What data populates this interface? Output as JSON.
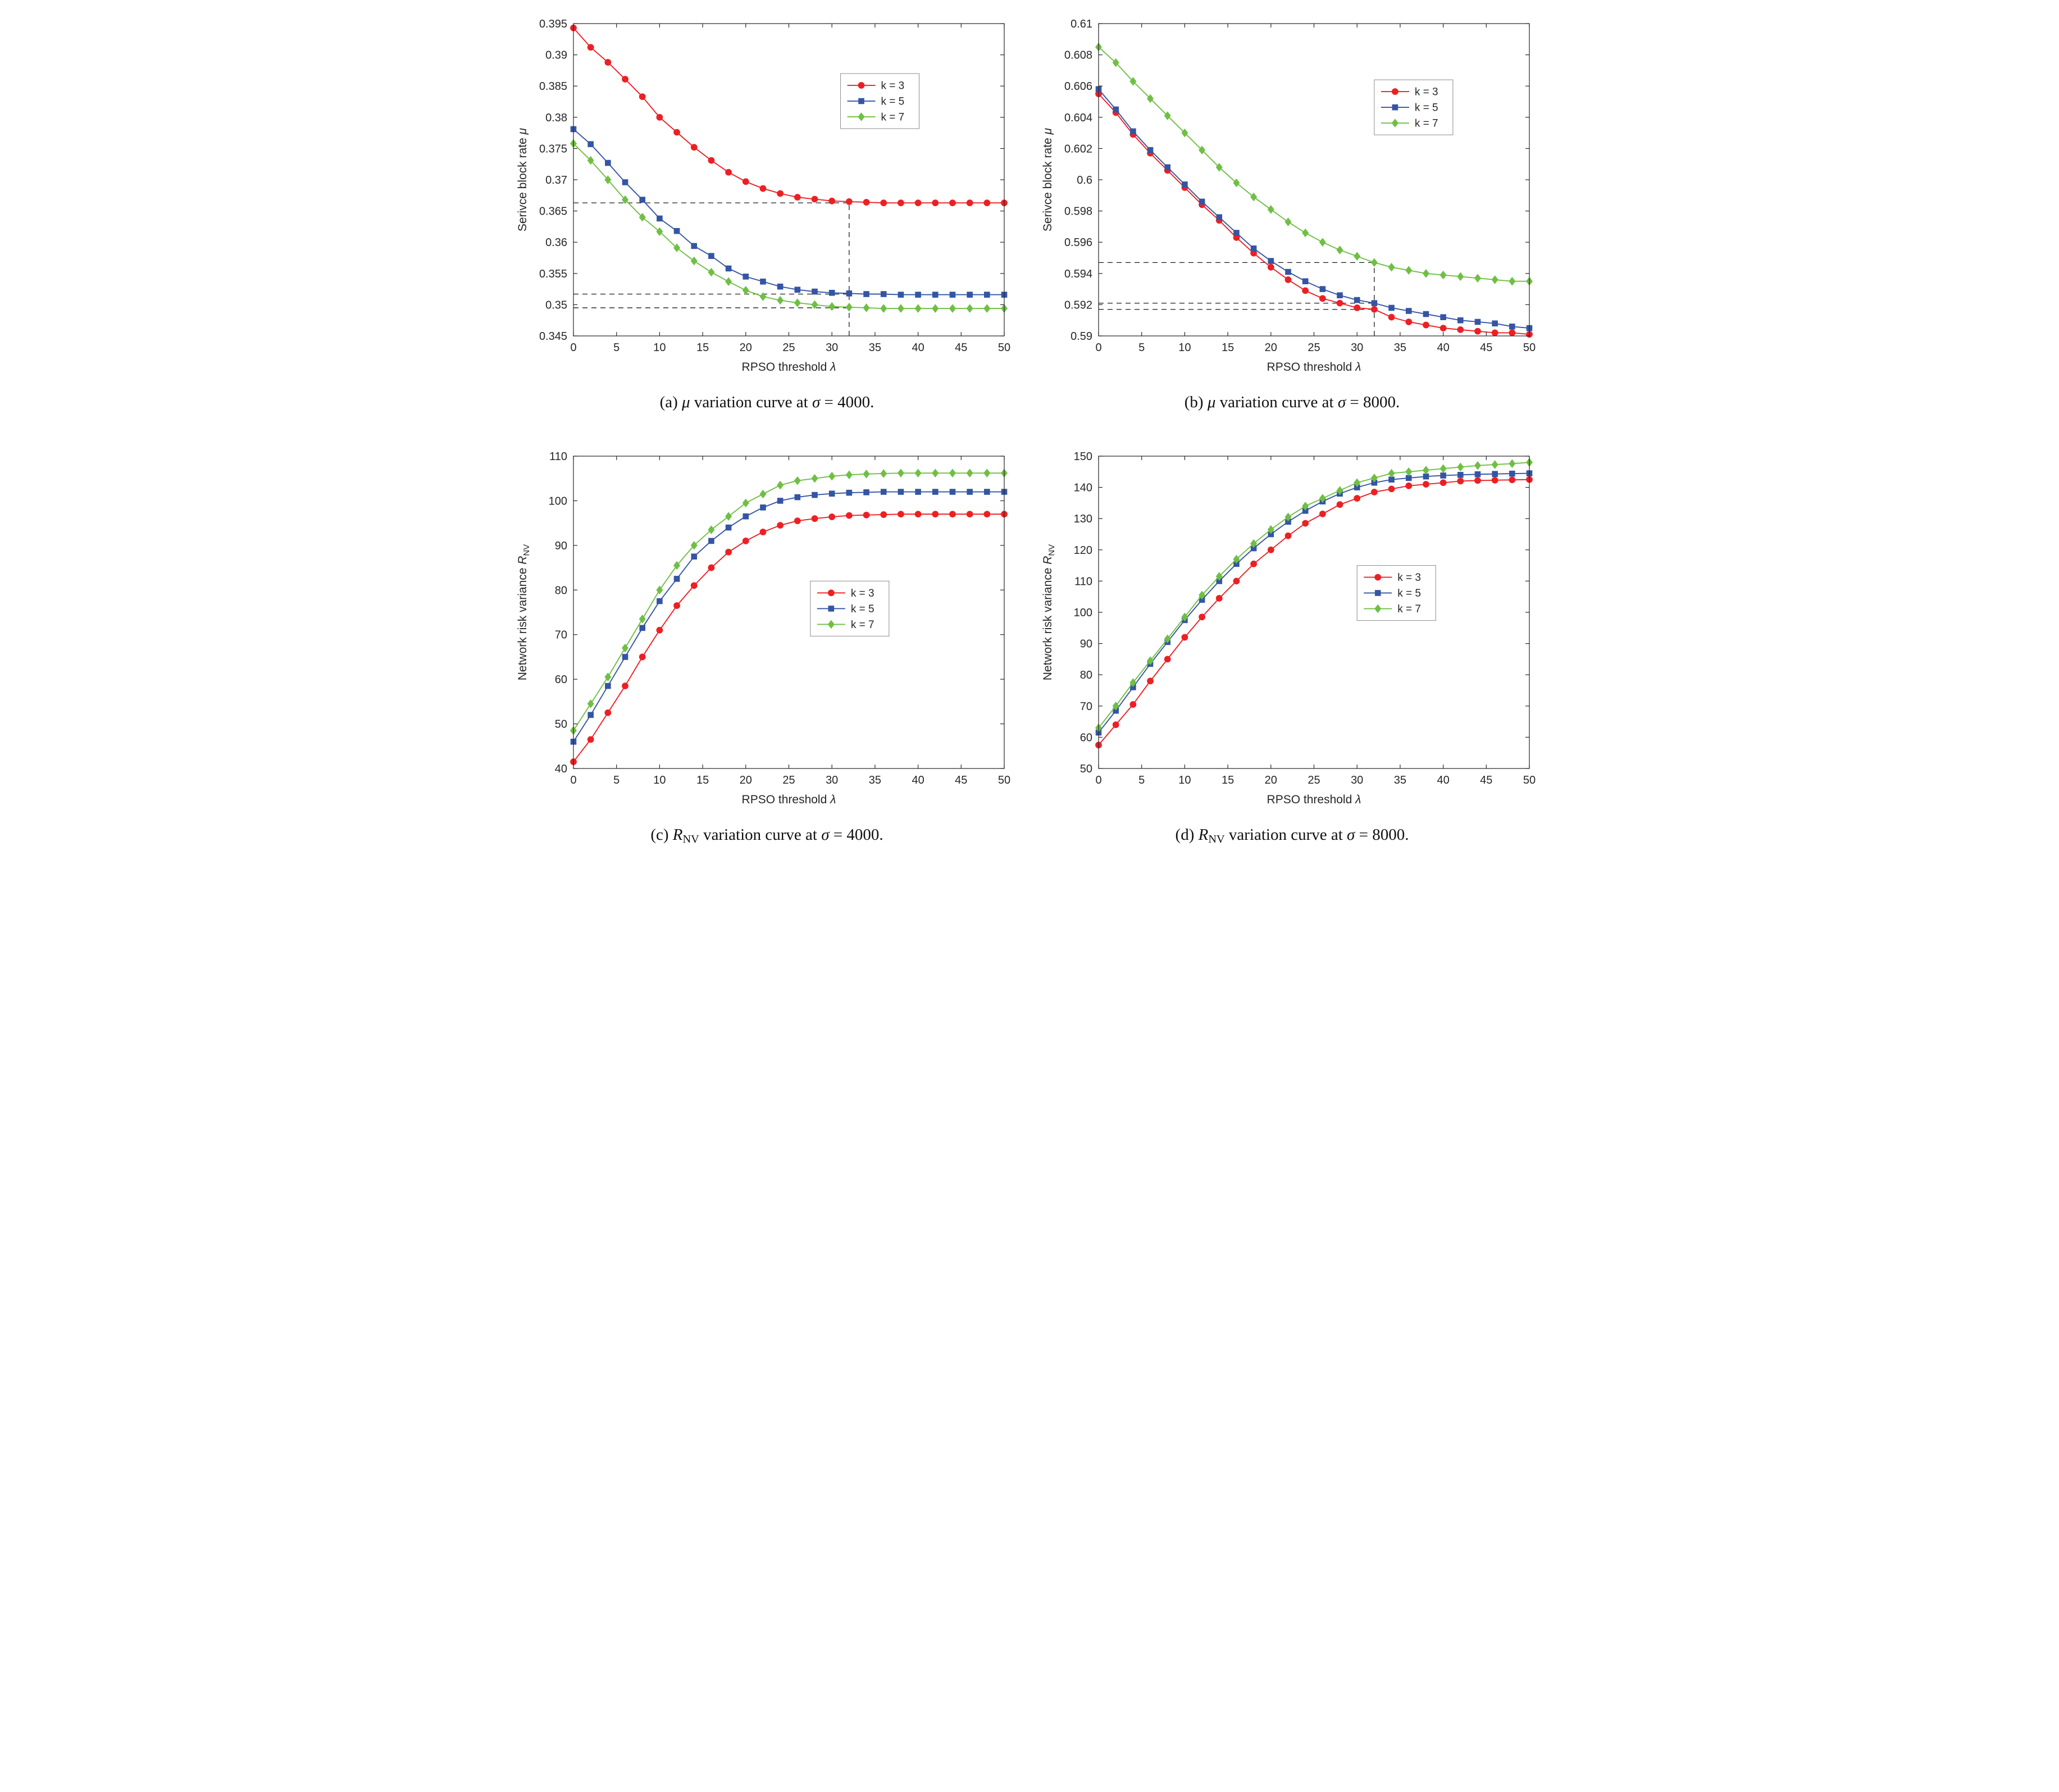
{
  "page": {
    "background": "#ffffff"
  },
  "colors": {
    "red": "#ec2024",
    "blue": "#3455a4",
    "green": "#6fbf44",
    "axis": "#262626",
    "dash": "#1a1a1a",
    "legend_border": "#8c8c8c"
  },
  "legend_entries": [
    "k = 3",
    "k = 5",
    "k = 7"
  ],
  "chart_data": [
    {
      "id": "a",
      "type": "line",
      "caption_segs": [
        {
          "t": "(a) "
        },
        {
          "t": "μ",
          "s": "i"
        },
        {
          "t": " variation curve at "
        },
        {
          "t": "σ",
          "s": "i"
        },
        {
          "t": " = 4000."
        }
      ],
      "xlabel_segs": [
        {
          "t": "RPSO threshold "
        },
        {
          "t": "λ",
          "s": "i"
        }
      ],
      "ylabel_segs": [
        {
          "t": "Serivce block rate "
        },
        {
          "t": "μ",
          "s": "i"
        }
      ],
      "xlim": [
        0,
        50
      ],
      "ylim": [
        0.345,
        0.395
      ],
      "xticks": {
        "values": [
          0,
          5,
          10,
          15,
          20,
          25,
          30,
          35,
          40,
          45,
          50
        ],
        "labels": [
          "0",
          "5",
          "10",
          "15",
          "20",
          "25",
          "30",
          "35",
          "40",
          "45",
          "50"
        ]
      },
      "yticks": {
        "values": [
          0.345,
          0.35,
          0.355,
          0.36,
          0.365,
          0.37,
          0.375,
          0.38,
          0.385,
          0.39,
          0.395
        ],
        "labels": [
          "0.345",
          "0.35",
          "0.355",
          "0.36",
          "0.365",
          "0.37",
          "0.375",
          "0.38",
          "0.385",
          "0.39",
          "0.395"
        ]
      },
      "x": [
        0,
        2,
        4,
        6,
        8,
        10,
        12,
        14,
        16,
        18,
        20,
        22,
        24,
        26,
        28,
        30,
        32,
        34,
        36,
        38,
        40,
        42,
        44,
        46,
        48,
        50
      ],
      "series": [
        {
          "name": "k = 3",
          "color": "#ec2024",
          "marker": "circle",
          "values": [
            0.3943,
            0.3912,
            0.3888,
            0.3861,
            0.3833,
            0.38,
            0.3776,
            0.3752,
            0.3731,
            0.3712,
            0.3697,
            0.3686,
            0.3678,
            0.3672,
            0.3669,
            0.3666,
            0.3665,
            0.3664,
            0.3663,
            0.3663,
            0.3663,
            0.3663,
            0.3663,
            0.3663,
            0.3663,
            0.3663
          ]
        },
        {
          "name": "k = 5",
          "color": "#3455a4",
          "marker": "square",
          "values": [
            0.3781,
            0.3757,
            0.3727,
            0.3696,
            0.3668,
            0.3638,
            0.3618,
            0.3594,
            0.3578,
            0.3558,
            0.3545,
            0.3537,
            0.3529,
            0.3524,
            0.3521,
            0.3519,
            0.3518,
            0.3517,
            0.3517,
            0.3516,
            0.3516,
            0.3516,
            0.3516,
            0.3516,
            0.3516,
            0.3516
          ]
        },
        {
          "name": "k = 7",
          "color": "#6fbf44",
          "marker": "diamond",
          "values": [
            0.3758,
            0.3731,
            0.37,
            0.3668,
            0.364,
            0.3617,
            0.3591,
            0.357,
            0.3552,
            0.3537,
            0.3523,
            0.3513,
            0.3507,
            0.3503,
            0.35,
            0.3497,
            0.3496,
            0.3495,
            0.3494,
            0.3494,
            0.3494,
            0.3494,
            0.3494,
            0.3494,
            0.3494,
            0.3494
          ]
        }
      ],
      "dashed_h": [
        {
          "y": 0.3663,
          "x0": 0,
          "x1": 32
        },
        {
          "y": 0.3517,
          "x0": 0,
          "x1": 32
        },
        {
          "y": 0.3495,
          "x0": 0,
          "x1": 32
        }
      ],
      "dashed_v": [
        {
          "x": 32,
          "y0": 0.345,
          "y1": 0.3663
        }
      ],
      "legend_pos": {
        "x": 0.62,
        "y": 0.16
      }
    },
    {
      "id": "b",
      "type": "line",
      "caption_segs": [
        {
          "t": "(b) "
        },
        {
          "t": "μ",
          "s": "i"
        },
        {
          "t": " variation curve at "
        },
        {
          "t": "σ",
          "s": "i"
        },
        {
          "t": " = 8000."
        }
      ],
      "xlabel_segs": [
        {
          "t": "RPSO threshold "
        },
        {
          "t": "λ",
          "s": "i"
        }
      ],
      "ylabel_segs": [
        {
          "t": "Serivce block rate "
        },
        {
          "t": "μ",
          "s": "i"
        }
      ],
      "xlim": [
        0,
        50
      ],
      "ylim": [
        0.59,
        0.61
      ],
      "xticks": {
        "values": [
          0,
          5,
          10,
          15,
          20,
          25,
          30,
          35,
          40,
          45,
          50
        ],
        "labels": [
          "0",
          "5",
          "10",
          "15",
          "20",
          "25",
          "30",
          "35",
          "40",
          "45",
          "50"
        ]
      },
      "yticks": {
        "values": [
          0.59,
          0.592,
          0.594,
          0.596,
          0.598,
          0.6,
          0.602,
          0.604,
          0.606,
          0.608,
          0.61
        ],
        "labels": [
          "0.59",
          "0.592",
          "0.594",
          "0.596",
          "0.598",
          "0.6",
          "0.602",
          "0.604",
          "0.606",
          "0.608",
          "0.61"
        ]
      },
      "x": [
        0,
        2,
        4,
        6,
        8,
        10,
        12,
        14,
        16,
        18,
        20,
        22,
        24,
        26,
        28,
        30,
        32,
        34,
        36,
        38,
        40,
        42,
        44,
        46,
        48,
        50
      ],
      "series": [
        {
          "name": "k = 3",
          "color": "#ec2024",
          "marker": "circle",
          "values": [
            0.6055,
            0.6043,
            0.6029,
            0.6017,
            0.6006,
            0.5995,
            0.5984,
            0.5974,
            0.5963,
            0.5953,
            0.5944,
            0.5936,
            0.5929,
            0.5924,
            0.5921,
            0.5918,
            0.5917,
            0.5912,
            0.5909,
            0.5907,
            0.5905,
            0.5904,
            0.5903,
            0.5902,
            0.5902,
            0.5901
          ]
        },
        {
          "name": "k = 5",
          "color": "#3455a4",
          "marker": "square",
          "values": [
            0.6058,
            0.6045,
            0.6031,
            0.6019,
            0.6008,
            0.5997,
            0.5986,
            0.5976,
            0.5966,
            0.5956,
            0.5948,
            0.5941,
            0.5935,
            0.593,
            0.5926,
            0.5923,
            0.5921,
            0.5918,
            0.5916,
            0.5914,
            0.5912,
            0.591,
            0.5909,
            0.5908,
            0.5906,
            0.5905
          ]
        },
        {
          "name": "k = 7",
          "color": "#6fbf44",
          "marker": "diamond",
          "values": [
            0.6085,
            0.6075,
            0.6063,
            0.6052,
            0.6041,
            0.603,
            0.6019,
            0.6008,
            0.5998,
            0.5989,
            0.5981,
            0.5973,
            0.5966,
            0.596,
            0.5955,
            0.5951,
            0.5947,
            0.5944,
            0.5942,
            0.594,
            0.5939,
            0.5938,
            0.5937,
            0.5936,
            0.5935,
            0.5935
          ]
        }
      ],
      "dashed_h": [
        {
          "y": 0.5947,
          "x0": 0,
          "x1": 32
        },
        {
          "y": 0.5921,
          "x0": 0,
          "x1": 32
        },
        {
          "y": 0.5917,
          "x0": 0,
          "x1": 32
        }
      ],
      "dashed_v": [
        {
          "x": 32,
          "y0": 0.59,
          "y1": 0.5947
        }
      ],
      "legend_pos": {
        "x": 0.64,
        "y": 0.18
      }
    },
    {
      "id": "c",
      "type": "line",
      "caption_segs": [
        {
          "t": "(c) "
        },
        {
          "t": "R",
          "s": "i"
        },
        {
          "t": "NV",
          "s": "sub"
        },
        {
          "t": " variation curve at "
        },
        {
          "t": "σ",
          "s": "i"
        },
        {
          "t": " = 4000."
        }
      ],
      "xlabel_segs": [
        {
          "t": "RPSO threshold "
        },
        {
          "t": "λ",
          "s": "i"
        }
      ],
      "ylabel_segs": [
        {
          "t": "Network risk variance  "
        },
        {
          "t": "R",
          "s": "i"
        },
        {
          "t": "NV",
          "s": "sub"
        }
      ],
      "xlim": [
        0,
        50
      ],
      "ylim": [
        40,
        110
      ],
      "xticks": {
        "values": [
          0,
          5,
          10,
          15,
          20,
          25,
          30,
          35,
          40,
          45,
          50
        ],
        "labels": [
          "0",
          "5",
          "10",
          "15",
          "20",
          "25",
          "30",
          "35",
          "40",
          "45",
          "50"
        ]
      },
      "yticks": {
        "values": [
          40,
          50,
          60,
          70,
          80,
          90,
          100,
          110
        ],
        "labels": [
          "40",
          "50",
          "60",
          "70",
          "80",
          "90",
          "100",
          "110"
        ]
      },
      "x": [
        0,
        2,
        4,
        6,
        8,
        10,
        12,
        14,
        16,
        18,
        20,
        22,
        24,
        26,
        28,
        30,
        32,
        34,
        36,
        38,
        40,
        42,
        44,
        46,
        48,
        50
      ],
      "series": [
        {
          "name": "k = 3",
          "color": "#ec2024",
          "marker": "circle",
          "values": [
            41.5,
            46.5,
            52.5,
            58.5,
            65,
            71,
            76.5,
            81,
            85,
            88.5,
            91,
            93,
            94.5,
            95.5,
            96,
            96.4,
            96.7,
            96.8,
            96.9,
            97,
            97,
            97,
            97,
            97,
            97,
            97
          ]
        },
        {
          "name": "k = 5",
          "color": "#3455a4",
          "marker": "square",
          "values": [
            46,
            52,
            58.5,
            65,
            71.5,
            77.5,
            82.5,
            87.5,
            91,
            94,
            96.5,
            98.5,
            100,
            100.8,
            101.3,
            101.6,
            101.8,
            101.9,
            102,
            102,
            102,
            102,
            102,
            102,
            102,
            102
          ]
        },
        {
          "name": "k = 7",
          "color": "#6fbf44",
          "marker": "diamond",
          "values": [
            48.5,
            54.5,
            60.5,
            67,
            73.5,
            80,
            85.5,
            90,
            93.5,
            96.5,
            99.5,
            101.5,
            103.5,
            104.5,
            105,
            105.5,
            105.8,
            106,
            106.1,
            106.2,
            106.2,
            106.2,
            106.2,
            106.2,
            106.2,
            106.2
          ]
        }
      ],
      "dashed_h": [],
      "dashed_v": [],
      "legend_pos": {
        "x": 0.55,
        "y": 0.4
      }
    },
    {
      "id": "d",
      "type": "line",
      "caption_segs": [
        {
          "t": "(d) "
        },
        {
          "t": "R",
          "s": "i"
        },
        {
          "t": "NV",
          "s": "sub"
        },
        {
          "t": " variation curve at "
        },
        {
          "t": "σ",
          "s": "i"
        },
        {
          "t": " = 8000."
        }
      ],
      "xlabel_segs": [
        {
          "t": "RPSO threshold "
        },
        {
          "t": "λ",
          "s": "i"
        }
      ],
      "ylabel_segs": [
        {
          "t": "Network risk variance  "
        },
        {
          "t": "R",
          "s": "i"
        },
        {
          "t": "NV",
          "s": "sub"
        }
      ],
      "xlim": [
        0,
        50
      ],
      "ylim": [
        50,
        150
      ],
      "xticks": {
        "values": [
          0,
          5,
          10,
          15,
          20,
          25,
          30,
          35,
          40,
          45,
          50
        ],
        "labels": [
          "0",
          "5",
          "10",
          "15",
          "20",
          "25",
          "30",
          "35",
          "40",
          "45",
          "50"
        ]
      },
      "yticks": {
        "values": [
          50,
          60,
          70,
          80,
          90,
          100,
          110,
          120,
          130,
          140,
          150
        ],
        "labels": [
          "50",
          "60",
          "70",
          "80",
          "90",
          "100",
          "110",
          "120",
          "130",
          "140",
          "150"
        ]
      },
      "x": [
        0,
        2,
        4,
        6,
        8,
        10,
        12,
        14,
        16,
        18,
        20,
        22,
        24,
        26,
        28,
        30,
        32,
        34,
        36,
        38,
        40,
        42,
        44,
        46,
        48,
        50
      ],
      "series": [
        {
          "name": "k = 3",
          "color": "#ec2024",
          "marker": "circle",
          "values": [
            57.5,
            64,
            70.5,
            78,
            85,
            92,
            98.5,
            104.5,
            110,
            115.5,
            120,
            124.5,
            128.5,
            131.5,
            134.5,
            136.5,
            138.5,
            139.5,
            140.5,
            141,
            141.5,
            142,
            142.2,
            142.3,
            142.4,
            142.5
          ]
        },
        {
          "name": "k = 5",
          "color": "#3455a4",
          "marker": "square",
          "values": [
            61.5,
            68.5,
            76,
            83.5,
            90.5,
            97.5,
            104,
            110,
            115.5,
            120.5,
            125,
            129,
            132.5,
            135.5,
            138,
            140,
            141.5,
            142.5,
            143,
            143.5,
            143.8,
            144,
            144.2,
            144.3,
            144.4,
            144.5
          ]
        },
        {
          "name": "k = 7",
          "color": "#6fbf44",
          "marker": "diamond",
          "values": [
            63,
            70,
            77.5,
            84.5,
            91.5,
            98.5,
            105.5,
            111.5,
            117,
            122,
            126.5,
            130.5,
            134,
            136.5,
            139,
            141.5,
            143,
            144.5,
            145,
            145.5,
            146,
            146.5,
            147,
            147.3,
            147.6,
            148
          ]
        }
      ],
      "dashed_h": [],
      "dashed_v": [],
      "legend_pos": {
        "x": 0.6,
        "y": 0.35
      }
    }
  ]
}
